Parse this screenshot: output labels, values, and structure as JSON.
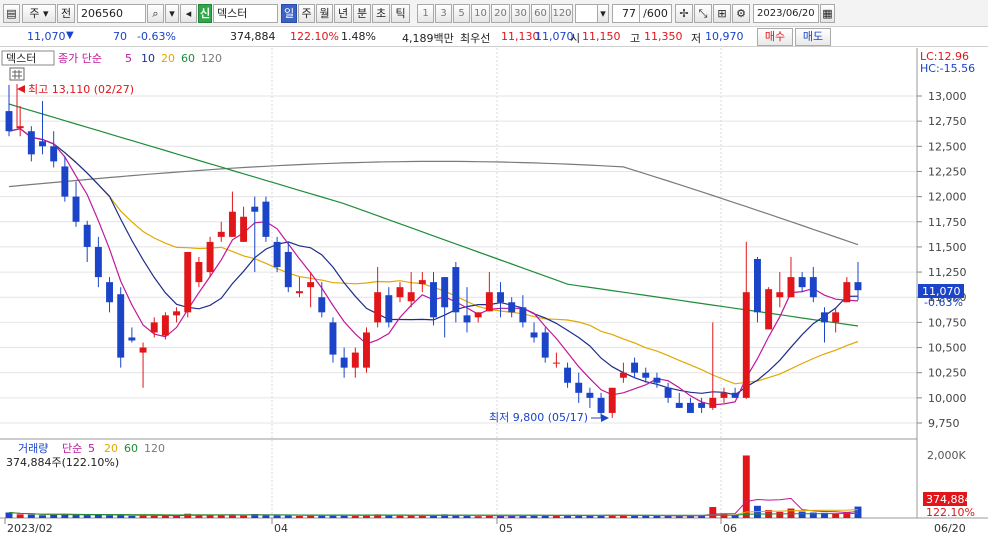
{
  "toolbar": {
    "market": "주",
    "prev_label": "전",
    "code": "206560",
    "badge": "신",
    "name": "덱스터",
    "periods": [
      "일",
      "주",
      "월",
      "년",
      "분",
      "초",
      "틱"
    ],
    "active_period": "일",
    "intervals": [
      "1",
      "3",
      "5",
      "10",
      "20",
      "30",
      "60",
      "120"
    ],
    "count": "77",
    "count_total": "/600",
    "date": "2023/06/20"
  },
  "info": {
    "price": "11,070",
    "change_arrow": "▼",
    "change": "70",
    "change_pct": "-0.63%",
    "volume": "374,884",
    "volume_ratio": "122.10%",
    "turnover": "1.48%",
    "amount": "4,189백만",
    "best_label": "최우선",
    "best_ask": "11,130",
    "best_bid": "11,070",
    "open_label": "시",
    "open": "11,150",
    "high_label": "고",
    "high": "11,350",
    "low_label": "저",
    "low": "10,970",
    "buy_button": "매수",
    "sell_button": "매도"
  },
  "price_panel": {
    "title": "덱스터",
    "legend_type": "종가 단순",
    "ma_labels": [
      "5",
      "10",
      "20",
      "60",
      "120"
    ],
    "lc": "LC:12.96",
    "hc": "HC:-15.56",
    "y_ticks": [
      "13,000",
      "12,750",
      "12,500",
      "12,250",
      "12,000",
      "11,750",
      "11,500",
      "11,250",
      "11,000",
      "10,750",
      "10,500",
      "10,250",
      "10,000",
      "9,750"
    ],
    "current_price_box": "11,070",
    "current_change_pct": "-0.63%",
    "high_annotation": "최고 13,110 (02/27)",
    "low_annotation": "최저 9,800 (05/17)"
  },
  "volume_panel": {
    "title": "거래량",
    "legend_type": "단순",
    "ma_labels": [
      "5",
      "20",
      "60",
      "120"
    ],
    "volume_text": "374,884주(122.10%)",
    "y_tick": "2,000K",
    "volume_box": "374,884",
    "ratio_box": "122.10%"
  },
  "x_axis": {
    "labels": [
      "2023/02",
      "04",
      "05",
      "06"
    ],
    "last_label": "06/20"
  },
  "colors": {
    "up": "#e0161a",
    "down": "#1b44c9",
    "ma5": "#c0189c",
    "ma10": "#1f2d8a",
    "ma20": "#e0a800",
    "ma60": "#1e8c3a",
    "ma120": "#7a7a7a"
  },
  "chart_data": {
    "type": "candlestick",
    "y_range": [
      9700,
      13250
    ],
    "candles": [
      [
        12850,
        13110,
        12600,
        12650
      ],
      [
        12680,
        12900,
        12600,
        12700
      ],
      [
        12650,
        12700,
        12350,
        12420
      ],
      [
        12550,
        12950,
        12420,
        12500
      ],
      [
        12500,
        12650,
        12290,
        12350
      ],
      [
        12300,
        12400,
        11950,
        12000
      ],
      [
        12000,
        12150,
        11700,
        11750
      ],
      [
        11720,
        11760,
        11350,
        11500
      ],
      [
        11500,
        11600,
        11100,
        11200
      ],
      [
        11150,
        11200,
        10850,
        10950
      ],
      [
        11030,
        11100,
        10300,
        10400
      ],
      [
        10600,
        10700,
        10550,
        10570
      ],
      [
        10450,
        10550,
        10100,
        10500
      ],
      [
        10650,
        10800,
        10600,
        10750
      ],
      [
        10620,
        10850,
        10580,
        10820
      ],
      [
        10820,
        10900,
        10750,
        10860
      ],
      [
        10850,
        11450,
        10800,
        11450
      ],
      [
        11150,
        11400,
        11100,
        11350
      ],
      [
        11250,
        11600,
        11200,
        11550
      ],
      [
        11600,
        11750,
        11550,
        11650
      ],
      [
        11600,
        12050,
        11600,
        11850
      ],
      [
        11550,
        11900,
        11550,
        11800
      ],
      [
        11900,
        12000,
        11250,
        11850
      ],
      [
        11950,
        12000,
        11550,
        11600
      ],
      [
        11550,
        11600,
        11250,
        11300
      ],
      [
        11450,
        11550,
        11050,
        11100
      ],
      [
        11040,
        11200,
        11000,
        11060
      ],
      [
        11100,
        11250,
        10900,
        11150
      ],
      [
        11000,
        11150,
        10800,
        10850
      ],
      [
        10750,
        10800,
        10350,
        10430
      ],
      [
        10400,
        10500,
        10200,
        10300
      ],
      [
        10300,
        10500,
        10200,
        10450
      ],
      [
        10300,
        10700,
        10250,
        10650
      ],
      [
        10750,
        11300,
        10700,
        11050
      ],
      [
        11020,
        11100,
        10700,
        10750
      ],
      [
        11000,
        11150,
        10950,
        11100
      ],
      [
        10960,
        11250,
        10900,
        11050
      ],
      [
        11130,
        11250,
        11050,
        11170
      ],
      [
        11150,
        11250,
        10720,
        10800
      ],
      [
        11200,
        11200,
        10600,
        10900
      ],
      [
        11300,
        11350,
        10750,
        10850
      ],
      [
        10820,
        11100,
        10650,
        10750
      ],
      [
        10800,
        10850,
        10750,
        10850
      ],
      [
        10860,
        11250,
        10860,
        11050
      ],
      [
        11050,
        11150,
        10800,
        10950
      ],
      [
        10950,
        11000,
        10800,
        10850
      ],
      [
        10900,
        11020,
        10700,
        10750
      ],
      [
        10650,
        10750,
        10550,
        10600
      ],
      [
        10650,
        10700,
        10350,
        10400
      ],
      [
        10350,
        10450,
        10300,
        10350
      ],
      [
        10300,
        10350,
        10100,
        10150
      ],
      [
        10150,
        10250,
        9950,
        10050
      ],
      [
        10050,
        10100,
        9900,
        10000
      ],
      [
        10000,
        10050,
        9800,
        9850
      ],
      [
        9850,
        10100,
        9800,
        10100
      ],
      [
        10200,
        10350,
        10150,
        10250
      ],
      [
        10350,
        10400,
        10200,
        10250
      ],
      [
        10250,
        10300,
        10150,
        10200
      ],
      [
        10200,
        10250,
        10100,
        10150
      ],
      [
        10100,
        10150,
        9950,
        10000
      ],
      [
        9950,
        10050,
        9900,
        9900
      ],
      [
        9950,
        10000,
        9850,
        9850
      ],
      [
        9950,
        10000,
        9850,
        9900
      ],
      [
        9900,
        10750,
        9880,
        10000
      ],
      [
        10000,
        10100,
        9950,
        10050
      ],
      [
        10050,
        10100,
        10000,
        10000
      ],
      [
        10000,
        11550,
        9990,
        11050
      ],
      [
        11380,
        11400,
        10750,
        10850
      ],
      [
        10680,
        11100,
        10680,
        11080
      ],
      [
        11000,
        11250,
        10900,
        11050
      ],
      [
        11000,
        11400,
        11000,
        11200
      ],
      [
        11200,
        11250,
        11050,
        11100
      ],
      [
        11200,
        11300,
        10950,
        11000
      ],
      [
        10850,
        10900,
        10550,
        10750
      ],
      [
        10750,
        10900,
        10650,
        10850
      ],
      [
        10950,
        11200,
        10950,
        11150
      ],
      [
        11150,
        11350,
        10970,
        11070
      ]
    ],
    "volume": [
      180,
      120,
      110,
      90,
      100,
      140,
      95,
      90,
      100,
      85,
      120,
      70,
      80,
      75,
      70,
      65,
      140,
      100,
      95,
      90,
      110,
      95,
      130,
      90,
      85,
      95,
      70,
      80,
      110,
      90,
      80,
      70,
      90,
      120,
      80,
      75,
      85,
      70,
      95,
      120,
      80,
      70,
      60,
      85,
      90,
      70,
      95,
      90,
      75,
      80,
      85,
      90,
      70,
      95,
      100,
      85,
      70,
      80,
      75,
      70,
      65,
      70,
      75,
      360,
      130,
      90,
      2050,
      400,
      260,
      200,
      310,
      210,
      180,
      170,
      140,
      200,
      374.884
    ]
  }
}
